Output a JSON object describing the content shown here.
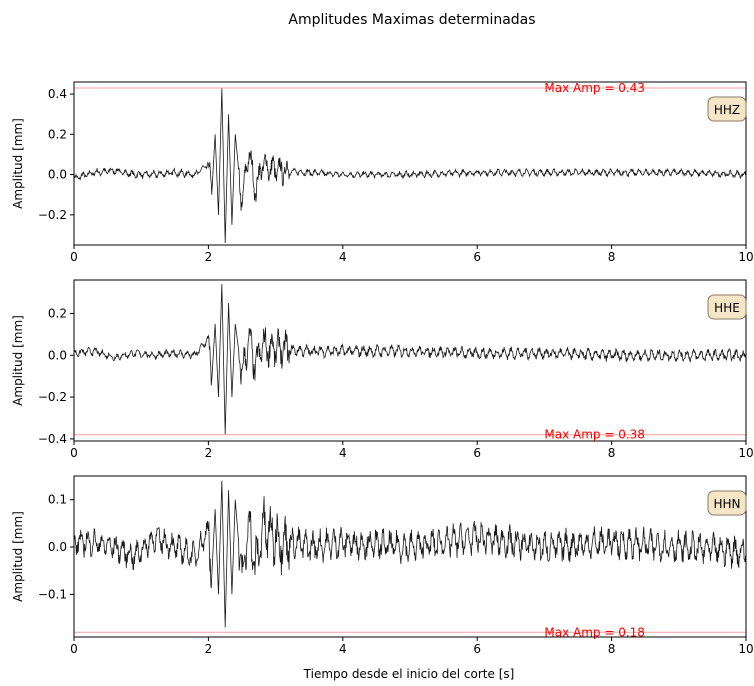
{
  "figure": {
    "title": "Amplitudes Maximas determinadas",
    "xlabel": "Tiempo desde el inicio del corte [s]"
  },
  "colors": {
    "trace": "#1a1a1a",
    "maxline": "#f4a0a0",
    "maxtext": "#ff0000",
    "badge_fill": "#f5e6c8",
    "badge_stroke": "#8a7a66"
  },
  "chart_data": [
    {
      "type": "line",
      "channel": "HHZ",
      "ylabel": "Amplitud [mm]",
      "xlim": [
        0,
        10
      ],
      "ylim": [
        -0.35,
        0.46
      ],
      "xticks": [
        0,
        2,
        4,
        6,
        8,
        10
      ],
      "xtick_labels": [
        "0",
        "2",
        "4",
        "6",
        "8",
        "10"
      ],
      "yticks": [
        -0.2,
        0.0,
        0.2,
        0.4
      ],
      "ytick_labels": [
        "−0.2",
        "0.0",
        "0.2",
        "0.4"
      ],
      "max_amp": 0.43,
      "max_label": "Max Amp = 0.43",
      "max_label_side": "top",
      "series": [
        {
          "x": [
            0,
            0.3,
            0.6,
            0.9,
            1.2,
            1.5,
            1.8,
            2.0,
            2.05,
            2.1,
            2.15,
            2.2,
            2.25,
            2.3,
            2.35,
            2.4,
            2.5,
            2.6,
            2.7,
            2.8,
            3.0,
            3.5,
            4.0,
            5.0,
            6.0,
            7.0,
            8.0,
            9.0,
            10.0
          ],
          "y": [
            -0.02,
            0.01,
            0.02,
            0.0,
            0.0,
            0.01,
            0.0,
            0.05,
            -0.1,
            0.2,
            -0.2,
            0.43,
            -0.34,
            0.3,
            -0.25,
            0.2,
            -0.15,
            0.12,
            -0.08,
            0.05,
            0.02,
            0.01,
            0.0,
            0.0,
            0.01,
            0.01,
            0.01,
            0.01,
            0.0
          ]
        }
      ],
      "noise": [
        {
          "from": 0.0,
          "to": 2.0,
          "amp": 0.02
        },
        {
          "from": 2.0,
          "to": 3.2,
          "amp": 0.08
        },
        {
          "from": 3.2,
          "to": 10.0,
          "amp": 0.018
        }
      ]
    },
    {
      "type": "line",
      "channel": "HHE",
      "ylabel": "Amplitud [mm]",
      "xlim": [
        0,
        10
      ],
      "ylim": [
        -0.41,
        0.36
      ],
      "xticks": [
        0,
        2,
        4,
        6,
        8,
        10
      ],
      "xtick_labels": [
        "0",
        "2",
        "4",
        "6",
        "8",
        "10"
      ],
      "yticks": [
        -0.4,
        -0.2,
        0.0,
        0.2
      ],
      "ytick_labels": [
        "−0.4",
        "−0.2",
        "0.0",
        "0.2"
      ],
      "max_amp": 0.38,
      "max_label": "Max Amp = 0.38",
      "max_label_side": "bottom",
      "series": [
        {
          "x": [
            0,
            0.3,
            0.6,
            0.9,
            1.2,
            1.5,
            1.8,
            2.0,
            2.05,
            2.1,
            2.15,
            2.2,
            2.25,
            2.3,
            2.35,
            2.4,
            2.5,
            2.6,
            2.7,
            2.8,
            3.0,
            3.5,
            4.0,
            5.0,
            6.0,
            7.0,
            8.0,
            9.0,
            10.0
          ],
          "y": [
            0.01,
            0.02,
            -0.01,
            0.01,
            0.0,
            0.01,
            0.0,
            0.08,
            -0.12,
            0.15,
            -0.2,
            0.34,
            -0.38,
            0.25,
            -0.2,
            0.15,
            -0.1,
            0.08,
            -0.06,
            0.05,
            0.03,
            0.02,
            0.02,
            0.02,
            0.01,
            0.01,
            0.0,
            0.0,
            0.0
          ]
        }
      ],
      "noise": [
        {
          "from": 0.0,
          "to": 2.0,
          "amp": 0.02
        },
        {
          "from": 2.0,
          "to": 3.2,
          "amp": 0.1
        },
        {
          "from": 3.2,
          "to": 10.0,
          "amp": 0.03
        }
      ]
    },
    {
      "type": "line",
      "channel": "HHN",
      "ylabel": "Amplitud [mm]",
      "xlim": [
        0,
        10
      ],
      "ylim": [
        -0.19,
        0.15
      ],
      "xticks": [
        0,
        2,
        4,
        6,
        8,
        10
      ],
      "xtick_labels": [
        "0",
        "2",
        "4",
        "6",
        "8",
        "10"
      ],
      "yticks": [
        -0.1,
        0.0,
        0.1
      ],
      "ytick_labels": [
        "−0.1",
        "0.0",
        "0.1"
      ],
      "max_amp": 0.18,
      "max_label": "Max Amp = 0.18",
      "max_label_side": "bottom",
      "series": [
        {
          "x": [
            0,
            0.3,
            0.6,
            0.9,
            1.2,
            1.5,
            1.8,
            2.0,
            2.05,
            2.1,
            2.15,
            2.2,
            2.25,
            2.3,
            2.35,
            2.4,
            2.5,
            2.6,
            2.7,
            2.8,
            3.0,
            3.5,
            4.0,
            5.0,
            6.0,
            7.0,
            8.0,
            9.0,
            10.0
          ],
          "y": [
            0.01,
            0.01,
            0.0,
            -0.02,
            0.02,
            0.0,
            -0.02,
            0.04,
            -0.06,
            0.08,
            -0.1,
            0.14,
            -0.17,
            0.12,
            -0.1,
            0.1,
            -0.08,
            0.06,
            -0.05,
            0.04,
            0.02,
            0.0,
            0.01,
            0.0,
            0.02,
            0.0,
            0.01,
            0.0,
            -0.01
          ]
        }
      ],
      "noise": [
        {
          "from": 0.0,
          "to": 2.0,
          "amp": 0.03
        },
        {
          "from": 2.0,
          "to": 3.2,
          "amp": 0.07
        },
        {
          "from": 3.2,
          "to": 10.0,
          "amp": 0.035
        }
      ]
    }
  ]
}
